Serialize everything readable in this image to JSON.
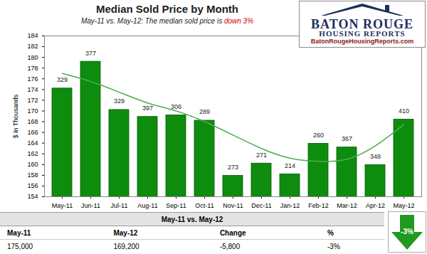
{
  "chart_data": {
    "type": "bar",
    "title": "Median Sold Price by Month",
    "subtitle": "May-11 vs. May-12: The median sold price is down 3%",
    "subtitle_highlight": "down 3%",
    "y_label": "$ in Thousands",
    "categories": [
      "May-11",
      "Jun-11",
      "Jul-11",
      "Aug-11",
      "Sep-11",
      "Oct-11",
      "Nov-11",
      "Dec-11",
      "Jan-12",
      "Feb-12",
      "Mar-12",
      "Apr-12",
      "May-12"
    ],
    "values": [
      175,
      180,
      171,
      169.7,
      170,
      169,
      158.7,
      161,
      159,
      164.7,
      164,
      160.7,
      169.2
    ],
    "color": "#0e8c0e",
    "counts": [
      329,
      377,
      329,
      397,
      306,
      289,
      273,
      271,
      214,
      260,
      367,
      348,
      410
    ],
    "trend": {
      "type": "line",
      "color": "#4caf4c",
      "values": [
        177,
        175.5,
        173.5,
        171.5,
        170,
        168,
        165.5,
        163,
        161.2,
        160.6,
        161,
        163.5,
        167.5
      ]
    },
    "ylim": [
      154,
      184
    ],
    "yticks": [
      154,
      156,
      158,
      160,
      162,
      164,
      166,
      168,
      170,
      172,
      174,
      176,
      178,
      180,
      182,
      184
    ],
    "grid": false,
    "logo": {
      "name": "BATON ROUGE",
      "subname": "HOUSING REPORTS",
      "url": "BatonRougeHousingReports.com"
    },
    "summary": {
      "title": "May-11 vs. May-12",
      "columns": [
        "May-11",
        "May-12",
        "Change",
        "%"
      ],
      "values": [
        {
          "value": 175000,
          "label": "175,000"
        },
        {
          "value": 169200,
          "label": "169,200"
        },
        {
          "value": -5800,
          "label": "-5,800"
        },
        {
          "value": -3,
          "label": "-3%"
        }
      ],
      "arrow_label": "-3%"
    }
  }
}
